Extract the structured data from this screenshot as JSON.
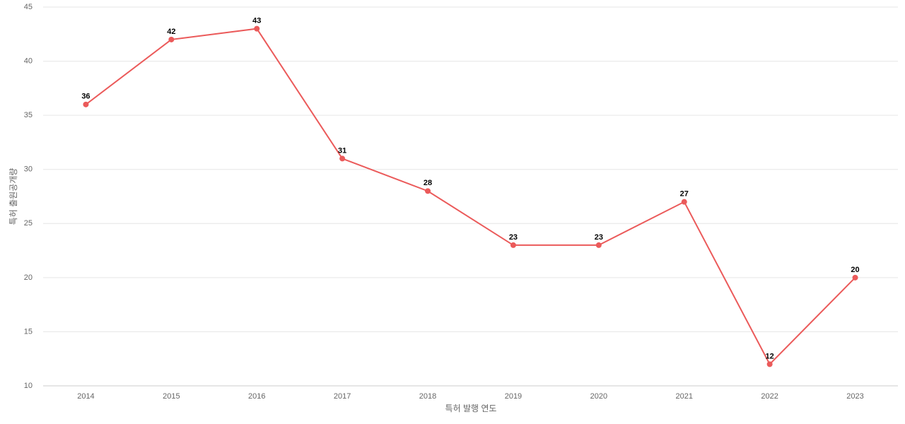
{
  "chart_data": {
    "type": "line",
    "x_label": "특허 발행 연도",
    "y_label": "특허 출원공개량",
    "categories": [
      "2014",
      "2015",
      "2016",
      "2017",
      "2018",
      "2019",
      "2020",
      "2021",
      "2022",
      "2023"
    ],
    "series": [
      {
        "color": "#eb5a5a",
        "values": [
          36,
          42,
          43,
          31,
          28,
          23,
          23,
          27,
          12,
          20
        ]
      }
    ],
    "ylim": [
      10,
      45
    ],
    "yticks": [
      10,
      15,
      20,
      25,
      30,
      35,
      40,
      45
    ],
    "grid": true
  }
}
